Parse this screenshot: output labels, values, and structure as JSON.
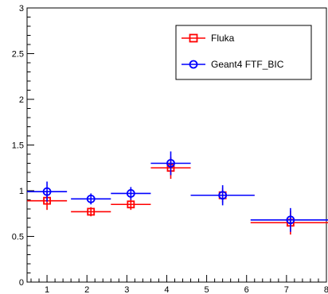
{
  "chart_data": {
    "type": "scatter",
    "title": "",
    "xlabel": "",
    "ylabel": "",
    "xlim": [
      0.5,
      8.0
    ],
    "ylim": [
      0,
      3
    ],
    "grid": false,
    "legend_placement": "top-right",
    "x_ticks": [
      "1",
      "2",
      "3",
      "4",
      "5",
      "6",
      "7",
      "8"
    ],
    "y_ticks": [
      "0",
      "0.5",
      "1",
      "1.5",
      "2",
      "2.5",
      "3"
    ],
    "series": [
      {
        "name": "Fluka",
        "color": "#ff0000",
        "marker": "open-square",
        "points": [
          {
            "x": 1.0,
            "xerr": 0.5,
            "y": 0.89,
            "yerr": 0.1
          },
          {
            "x": 2.1,
            "xerr": 0.5,
            "y": 0.77,
            "yerr": 0.05
          },
          {
            "x": 3.1,
            "xerr": 0.5,
            "y": 0.85,
            "yerr": 0.06
          },
          {
            "x": 4.1,
            "xerr": 0.5,
            "y": 1.25,
            "yerr": 0.12
          },
          {
            "x": 5.4,
            "xerr": 0.8,
            "y": 0.95,
            "yerr": 0.08
          },
          {
            "x": 7.1,
            "xerr": 1.0,
            "y": 0.65,
            "yerr": 0.13
          }
        ]
      },
      {
        "name": "Geant4 FTF_BIC",
        "color": "#0000ff",
        "marker": "open-circle",
        "points": [
          {
            "x": 1.0,
            "xerr": 0.5,
            "y": 0.99,
            "yerr": 0.11
          },
          {
            "x": 2.1,
            "xerr": 0.5,
            "y": 0.91,
            "yerr": 0.06
          },
          {
            "x": 3.1,
            "xerr": 0.5,
            "y": 0.97,
            "yerr": 0.07
          },
          {
            "x": 4.1,
            "xerr": 0.5,
            "y": 1.3,
            "yerr": 0.13
          },
          {
            "x": 5.4,
            "xerr": 0.8,
            "y": 0.95,
            "yerr": 0.11
          },
          {
            "x": 7.1,
            "xerr": 1.0,
            "y": 0.68,
            "yerr": 0.13
          }
        ]
      }
    ]
  }
}
